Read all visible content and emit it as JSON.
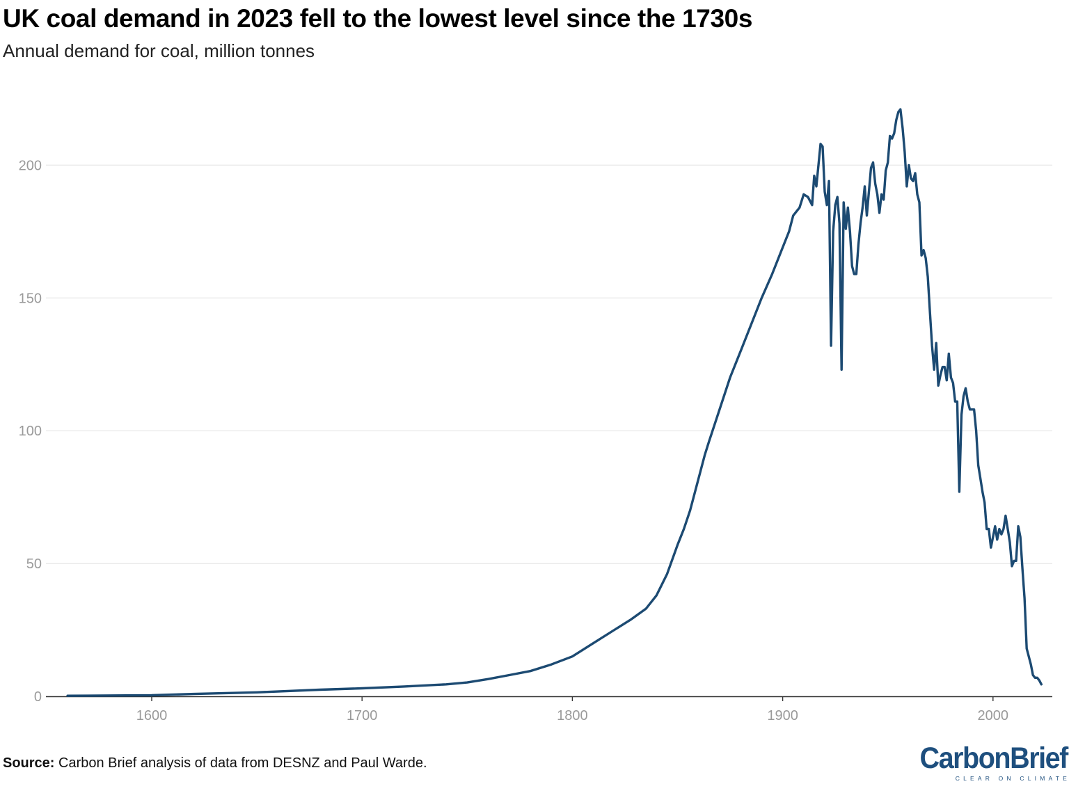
{
  "header": {
    "title": "UK coal demand in 2023 fell to the lowest level since the 1730s",
    "subtitle": "Annual demand for coal, million tonnes"
  },
  "footer": {
    "source_label": "Source:",
    "source_text": " Carbon Brief analysis of data from DESNZ and Paul Warde.",
    "logo_word": "CarbonBrief",
    "logo_tagline": "CLEAR ON CLIMATE"
  },
  "colors": {
    "line": "#1c4a72",
    "grid": "#e6e6e6",
    "axis": "#333333",
    "brand": "#1e4f7e"
  },
  "chart_data": {
    "type": "line",
    "title": "UK coal demand in 2023 fell to the lowest level since the 1730s",
    "subtitle": "Annual demand for coal, million tonnes",
    "xlabel": "",
    "ylabel": "",
    "xlim": [
      1560,
      2023
    ],
    "ylim": [
      0,
      200
    ],
    "x_ticks": [
      1600,
      1700,
      1800,
      1900,
      2000
    ],
    "y_ticks": [
      0,
      50,
      100,
      150,
      200
    ],
    "grid": "horizontal",
    "legend": "none",
    "series": [
      {
        "name": "Annual demand for coal",
        "points": [
          [
            1560,
            0.2
          ],
          [
            1600,
            0.4
          ],
          [
            1620,
            0.9
          ],
          [
            1650,
            1.5
          ],
          [
            1680,
            2.5
          ],
          [
            1700,
            3.0
          ],
          [
            1720,
            3.7
          ],
          [
            1740,
            4.5
          ],
          [
            1750,
            5.2
          ],
          [
            1760,
            6.5
          ],
          [
            1770,
            8.0
          ],
          [
            1780,
            9.5
          ],
          [
            1790,
            12
          ],
          [
            1800,
            15
          ],
          [
            1810,
            20
          ],
          [
            1820,
            25
          ],
          [
            1828,
            29
          ],
          [
            1835,
            33
          ],
          [
            1840,
            38
          ],
          [
            1845,
            46
          ],
          [
            1850,
            57
          ],
          [
            1853,
            63
          ],
          [
            1856,
            70
          ],
          [
            1860,
            82
          ],
          [
            1863,
            91
          ],
          [
            1865,
            96
          ],
          [
            1870,
            108
          ],
          [
            1875,
            120
          ],
          [
            1880,
            130
          ],
          [
            1885,
            140
          ],
          [
            1890,
            150
          ],
          [
            1895,
            159
          ],
          [
            1900,
            169
          ],
          [
            1903,
            175
          ],
          [
            1905,
            181
          ],
          [
            1908,
            184
          ],
          [
            1910,
            189
          ],
          [
            1912,
            188
          ],
          [
            1914,
            185
          ],
          [
            1915,
            196
          ],
          [
            1916,
            192
          ],
          [
            1918,
            208
          ],
          [
            1919,
            207
          ],
          [
            1920,
            190
          ],
          [
            1921,
            185
          ],
          [
            1922,
            194
          ],
          [
            1923,
            132
          ],
          [
            1924,
            175
          ],
          [
            1925,
            185
          ],
          [
            1926,
            188
          ],
          [
            1927,
            178
          ],
          [
            1928,
            123
          ],
          [
            1929,
            186
          ],
          [
            1930,
            176
          ],
          [
            1931,
            184
          ],
          [
            1932,
            175
          ],
          [
            1933,
            162
          ],
          [
            1934,
            159
          ],
          [
            1935,
            159
          ],
          [
            1936,
            170
          ],
          [
            1937,
            178
          ],
          [
            1938,
            184
          ],
          [
            1939,
            192
          ],
          [
            1940,
            181
          ],
          [
            1942,
            199
          ],
          [
            1943,
            201
          ],
          [
            1944,
            193
          ],
          [
            1945,
            189
          ],
          [
            1946,
            182
          ],
          [
            1947,
            189
          ],
          [
            1948,
            187
          ],
          [
            1949,
            198
          ],
          [
            1950,
            201
          ],
          [
            1951,
            211
          ],
          [
            1952,
            210
          ],
          [
            1953,
            212
          ],
          [
            1954,
            217
          ],
          [
            1955,
            220
          ],
          [
            1956,
            221
          ],
          [
            1957,
            214
          ],
          [
            1958,
            205
          ],
          [
            1959,
            192
          ],
          [
            1960,
            200
          ],
          [
            1961,
            195
          ],
          [
            1962,
            194
          ],
          [
            1963,
            197
          ],
          [
            1964,
            189
          ],
          [
            1965,
            186
          ],
          [
            1966,
            166
          ],
          [
            1967,
            168
          ],
          [
            1968,
            165
          ],
          [
            1969,
            158
          ],
          [
            1970,
            145
          ],
          [
            1971,
            132
          ],
          [
            1972,
            123
          ],
          [
            1973,
            133
          ],
          [
            1974,
            117
          ],
          [
            1975,
            121
          ],
          [
            1976,
            124
          ],
          [
            1977,
            124
          ],
          [
            1978,
            119
          ],
          [
            1979,
            129
          ],
          [
            1980,
            120
          ],
          [
            1981,
            118
          ],
          [
            1982,
            111
          ],
          [
            1983,
            111
          ],
          [
            1984,
            77
          ],
          [
            1985,
            106
          ],
          [
            1986,
            113
          ],
          [
            1987,
            116
          ],
          [
            1988,
            111
          ],
          [
            1989,
            108
          ],
          [
            1990,
            108
          ],
          [
            1991,
            108
          ],
          [
            1992,
            100
          ],
          [
            1993,
            87
          ],
          [
            1994,
            82
          ],
          [
            1995,
            77
          ],
          [
            1996,
            73
          ],
          [
            1997,
            63
          ],
          [
            1998,
            63
          ],
          [
            1999,
            56
          ],
          [
            2000,
            60
          ],
          [
            2001,
            64
          ],
          [
            2002,
            59
          ],
          [
            2003,
            63
          ],
          [
            2004,
            61
          ],
          [
            2005,
            63
          ],
          [
            2006,
            68
          ],
          [
            2007,
            63
          ],
          [
            2008,
            58
          ],
          [
            2009,
            49
          ],
          [
            2010,
            51
          ],
          [
            2011,
            51
          ],
          [
            2012,
            64
          ],
          [
            2013,
            60
          ],
          [
            2014,
            48
          ],
          [
            2015,
            37
          ],
          [
            2016,
            18
          ],
          [
            2017,
            15
          ],
          [
            2018,
            12
          ],
          [
            2019,
            8
          ],
          [
            2020,
            7
          ],
          [
            2021,
            7
          ],
          [
            2022,
            6
          ],
          [
            2023,
            4.5
          ]
        ]
      }
    ]
  }
}
